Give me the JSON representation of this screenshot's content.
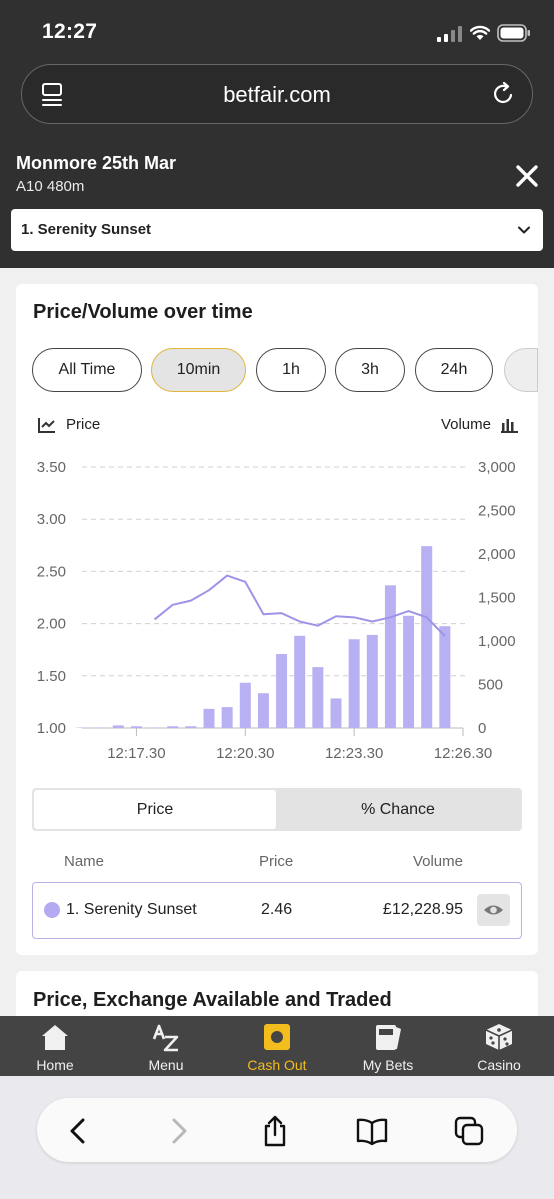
{
  "status_bar": {
    "time": "12:27"
  },
  "browser": {
    "url": "betfair.com"
  },
  "race": {
    "title": "Monmore 25th Mar",
    "subtitle": "A10 480m",
    "selected_runner": "1. Serenity Sunset"
  },
  "chart_card": {
    "title": "Price/Volume over time",
    "ranges": [
      "All Time",
      "10min",
      "1h",
      "3h",
      "24h"
    ],
    "active_range": "10min",
    "legend_price": "Price",
    "legend_volume": "Volume"
  },
  "chart_data": {
    "type": "bar+line",
    "x_ticks": [
      "12:17.30",
      "12:20.30",
      "12:23.30",
      "12:26.30"
    ],
    "x_range": [
      "12:16.00",
      "12:26.30"
    ],
    "y_left": {
      "label": "Price",
      "ticks": [
        "1.00",
        "1.50",
        "2.00",
        "2.50",
        "3.00",
        "3.50"
      ],
      "lim": [
        1.0,
        3.5
      ]
    },
    "y_right": {
      "label": "Volume",
      "ticks": [
        "0",
        "500",
        "1,000",
        "1,500",
        "2,000",
        "2,500",
        "3,000"
      ],
      "lim": [
        0,
        3000
      ]
    },
    "grid": true,
    "bar_color": "#b7b0f2",
    "line_color": "#9d94e8",
    "volume_bars": {
      "times": [
        "12:16.00",
        "12:16.30",
        "12:17.00",
        "12:17.30",
        "12:18.00",
        "12:18.30",
        "12:19.00",
        "12:19.30",
        "12:20.00",
        "12:20.30",
        "12:21.00",
        "12:21.30",
        "12:22.00",
        "12:22.30",
        "12:23.00",
        "12:23.30",
        "12:24.00",
        "12:24.30",
        "12:25.00",
        "12:25.30",
        "12:26.00"
      ],
      "values": [
        5,
        5,
        30,
        20,
        5,
        20,
        20,
        220,
        240,
        520,
        400,
        850,
        1060,
        700,
        340,
        1020,
        1070,
        1640,
        1290,
        2090,
        1170
      ]
    },
    "price_line": {
      "times": [
        "12:18.00",
        "12:18.30",
        "12:19.00",
        "12:19.30",
        "12:20.00",
        "12:20.30",
        "12:21.00",
        "12:21.30",
        "12:22.00",
        "12:22.30",
        "12:23.00",
        "12:23.30",
        "12:24.00",
        "12:24.30",
        "12:25.00",
        "12:25.30",
        "12:26.00"
      ],
      "values": [
        2.04,
        2.18,
        2.22,
        2.32,
        2.46,
        2.4,
        2.09,
        2.1,
        2.02,
        1.98,
        2.07,
        2.06,
        2.02,
        2.06,
        2.12,
        2.06,
        1.88
      ]
    }
  },
  "toggle": {
    "option_price": "Price",
    "option_chance": "% Chance"
  },
  "table": {
    "headers": {
      "name": "Name",
      "price": "Price",
      "volume": "Volume"
    },
    "row": {
      "name": "1. Serenity Sunset",
      "price": "2.46",
      "volume": "£12,228.95"
    }
  },
  "card2": {
    "title": "Price, Exchange Available and Traded"
  },
  "bottom_nav": [
    {
      "label": "Home",
      "icon": "home-icon"
    },
    {
      "label": "Menu",
      "icon": "az-menu-icon"
    },
    {
      "label": "Cash Out",
      "icon": "cash-out-icon"
    },
    {
      "label": "My Bets",
      "icon": "my-bets-icon"
    },
    {
      "label": "Casino",
      "icon": "dice-icon"
    }
  ],
  "colors": {
    "accent": "#f4bd1e",
    "header_bg": "#303030",
    "runner_color": "#b3aaf2"
  }
}
